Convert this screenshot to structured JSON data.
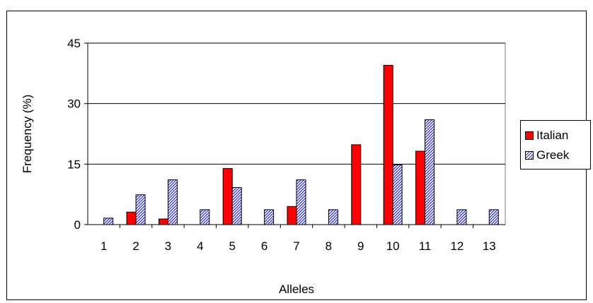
{
  "colors": {
    "italian": "#ff0000",
    "greek_hatch": "#2a2acf",
    "greek_bg": "#ffffff",
    "plot_bg": "#ffffff",
    "gridline": "#000000"
  },
  "chart_data": {
    "type": "bar",
    "title": "",
    "xlabel": "Alleles",
    "ylabel": "Frequency (%)",
    "categories": [
      "1",
      "2",
      "3",
      "4",
      "5",
      "6",
      "7",
      "8",
      "9",
      "10",
      "11",
      "12",
      "13"
    ],
    "series": [
      {
        "name": "Italian",
        "values": [
          0,
          3.1,
          1.4,
          0,
          13.9,
          0,
          4.5,
          0,
          19.8,
          39.5,
          18.2,
          0,
          0
        ]
      },
      {
        "name": "Greek",
        "values": [
          1.6,
          7.4,
          11.1,
          3.7,
          9.2,
          3.7,
          11.1,
          3.7,
          0,
          14.8,
          26.0,
          3.7,
          3.7
        ]
      }
    ],
    "ylim": [
      0,
      45
    ],
    "yticks": [
      "0",
      "15",
      "30",
      "45"
    ],
    "grid": true,
    "legend": "right"
  }
}
